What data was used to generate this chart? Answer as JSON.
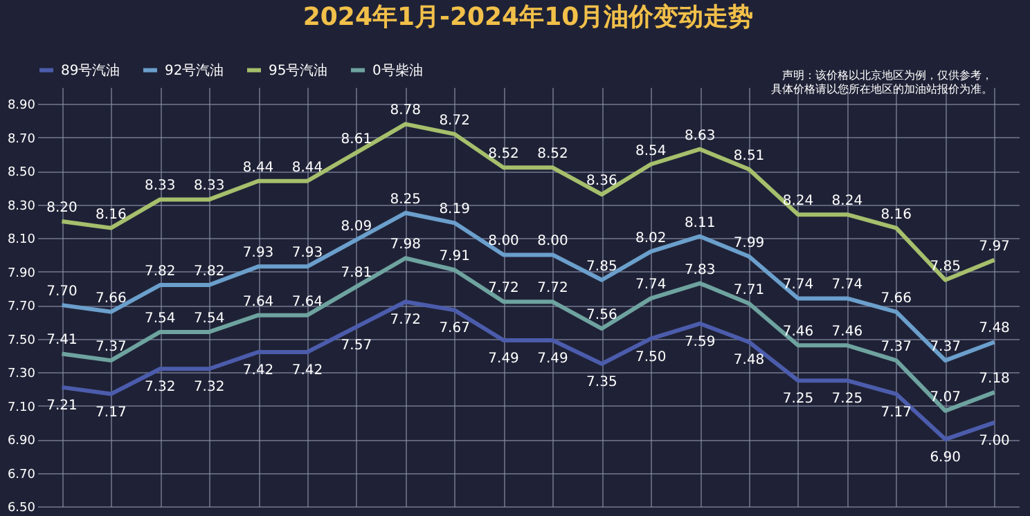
{
  "chart_data": {
    "type": "line",
    "title": "2024年1月-2024年10月油价变动走势",
    "annotations": [
      "声明：该价格以北京地区为例，仅供参考，具体价格请以您所在地区的加油站报价为准。"
    ],
    "categories": [
      null,
      null,
      null,
      null,
      null,
      null,
      null,
      null,
      null,
      null,
      null,
      null,
      null,
      null,
      null,
      null,
      null,
      null,
      null,
      null
    ],
    "series": [
      {
        "name": "89号汽油",
        "color": "#4c5cac",
        "values": [
          7.21,
          7.17,
          7.32,
          7.32,
          7.42,
          7.42,
          7.57,
          7.72,
          7.67,
          7.49,
          7.49,
          7.35,
          7.5,
          7.59,
          7.48,
          7.25,
          7.25,
          7.17,
          6.9,
          7.0
        ],
        "value_labels": [
          "7.21",
          "7.17",
          "7.32",
          "7.32",
          "7.42",
          "7.42",
          "7.57",
          "7.72",
          "7.67",
          "7.49",
          "7.49",
          "7.35",
          "7.50",
          "7.59",
          "7.48",
          "7.25",
          "7.25",
          "7.17",
          "6.90",
          "7.00"
        ]
      },
      {
        "name": "92号汽油",
        "color": "#6b9fcc",
        "values": [
          7.7,
          7.66,
          7.82,
          7.82,
          7.93,
          7.93,
          8.09,
          8.25,
          8.19,
          8.0,
          8.0,
          7.85,
          8.02,
          8.11,
          7.99,
          7.74,
          7.74,
          7.66,
          7.37,
          7.48
        ],
        "value_labels": [
          "7.70",
          "7.66",
          "7.82",
          "7.82",
          "7.93",
          "7.93",
          "8.09",
          "8.25",
          "8.19",
          "8.00",
          "8.00",
          "7.85",
          "8.02",
          "8.11",
          "7.99",
          "7.74",
          "7.74",
          "7.66",
          "7.37",
          "7.48"
        ]
      },
      {
        "name": "95号汽油",
        "color": "#a6bf6c",
        "values": [
          8.2,
          8.16,
          8.33,
          8.33,
          8.44,
          8.44,
          8.61,
          8.78,
          8.72,
          8.52,
          8.52,
          8.36,
          8.54,
          8.63,
          8.51,
          8.24,
          8.24,
          8.16,
          7.85,
          7.97
        ],
        "value_labels": [
          "8.20",
          "8.16",
          "8.33",
          "8.33",
          "8.44",
          "8.44",
          "8.61",
          "8.78",
          "8.72",
          "8.52",
          "8.52",
          "8.36",
          "8.54",
          "8.63",
          "8.51",
          "8.24",
          "8.24",
          "8.16",
          "7.85",
          "7.97"
        ]
      },
      {
        "name": "0号柴油",
        "color": "#6ea3a0",
        "values": [
          7.41,
          7.37,
          7.54,
          7.54,
          7.64,
          7.64,
          7.81,
          7.98,
          7.91,
          7.72,
          7.72,
          7.56,
          7.74,
          7.83,
          7.71,
          7.46,
          7.46,
          7.37,
          7.07,
          7.18
        ],
        "value_labels": [
          "7.41",
          "7.37",
          "7.54",
          "7.54",
          "7.64",
          "7.64",
          "7.81",
          "7.98",
          "7.91",
          "7.72",
          "7.72",
          "7.56",
          "7.74",
          "7.83",
          "7.71",
          "7.46",
          "7.46",
          "7.37",
          "7.07",
          "7.18"
        ]
      }
    ],
    "ylim": [
      6.5,
      9.0
    ],
    "yticks": [
      {
        "value": 6.5,
        "label": "6.50"
      },
      {
        "value": 6.7,
        "label": "6.70"
      },
      {
        "value": 6.9,
        "label": "6.90"
      },
      {
        "value": 7.1,
        "label": "7.10"
      },
      {
        "value": 7.3,
        "label": "7.30"
      },
      {
        "value": 7.5,
        "label": "7.50"
      },
      {
        "value": 7.7,
        "label": "7.70"
      },
      {
        "value": 7.9,
        "label": "7.90"
      },
      {
        "value": 8.1,
        "label": "8.10"
      },
      {
        "value": 8.3,
        "label": "8.30"
      },
      {
        "value": 8.5,
        "label": "8.50"
      },
      {
        "value": 8.7,
        "label": "8.70"
      },
      {
        "value": 8.9,
        "label": "8.90"
      }
    ],
    "grid": true,
    "legend": "top",
    "tick_labels": "y",
    "marker": "none",
    "line_style": "solid"
  }
}
